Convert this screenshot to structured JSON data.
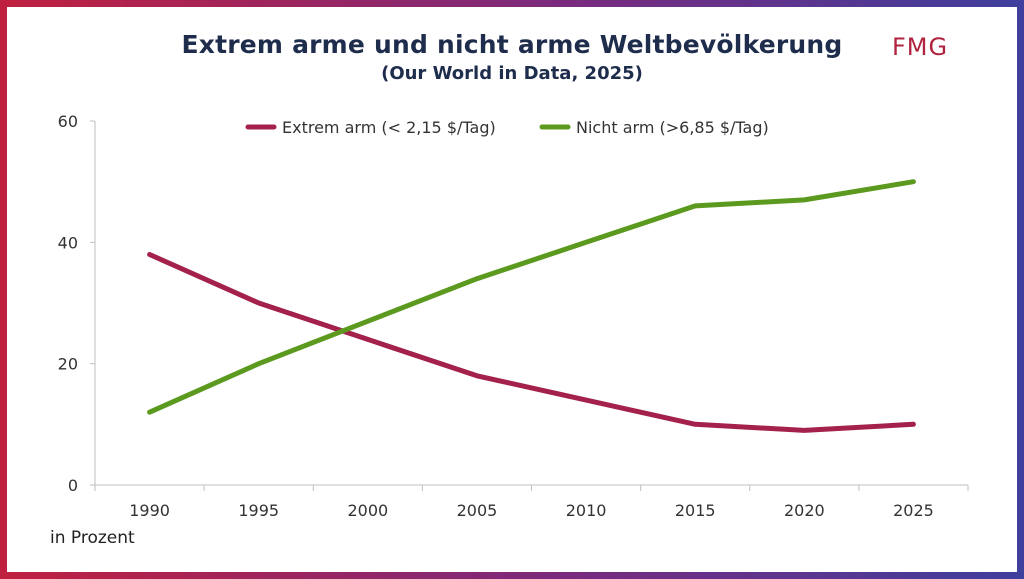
{
  "header": {
    "title": "Extrem arme und nicht arme Weltbevölkerung",
    "subtitle": "(Our World in Data, 2025)",
    "logo_text": "FMG"
  },
  "footer": {
    "unit_note": "in Prozent"
  },
  "colors": {
    "frame_left": "#c0203f",
    "frame_right": "#3f3f9e",
    "title": "#1f2d4d",
    "logo": "#b0233f"
  },
  "chart_data": {
    "type": "line",
    "title": "Extrem arme und nicht arme Weltbevölkerung",
    "subtitle": "(Our World in Data, 2025)",
    "xlabel": "",
    "ylabel": "in Prozent",
    "x": [
      1990,
      1995,
      2000,
      2005,
      2010,
      2015,
      2020,
      2025
    ],
    "ylim": [
      0,
      60
    ],
    "yticks": [
      0,
      20,
      40,
      60
    ],
    "grid": false,
    "legend_position": "top-center",
    "series": [
      {
        "name": "Extrem arm (< 2,15 $/Tag)",
        "color": "#a3214a",
        "values": [
          38,
          30,
          24,
          18,
          14,
          10,
          9,
          10
        ]
      },
      {
        "name": "Nicht arm (>6,85 $/Tag)",
        "color": "#5c9a1f",
        "values": [
          12,
          20,
          27,
          34,
          40,
          46,
          47,
          50
        ]
      }
    ]
  }
}
